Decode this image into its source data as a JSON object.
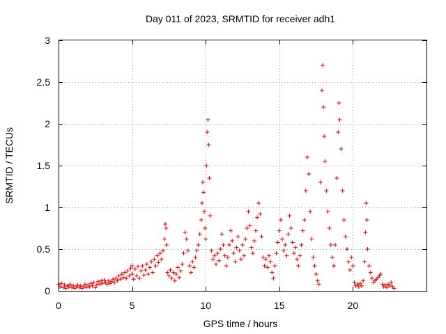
{
  "chart_data": {
    "type": "scatter",
    "title": "Day 011 of 2023, SRMTID for receiver adh1",
    "xlabel": "GPS time / hours",
    "ylabel": "SRMTID / TECUs",
    "xlim": [
      0,
      25
    ],
    "ylim": [
      0,
      3
    ],
    "xticks": [
      0,
      5,
      10,
      15,
      20
    ],
    "xtick_labels": [
      "0",
      "5",
      "10",
      "15",
      "20"
    ],
    "yticks": [
      0,
      0.5,
      1,
      1.5,
      2,
      2.5,
      3
    ],
    "ytick_labels": [
      "0",
      "0.5",
      "1",
      "1.5",
      "2",
      "2.5",
      "3"
    ],
    "grid": true,
    "marker": "+",
    "series_color": "#e00000",
    "series": [
      {
        "name": "SRMTID",
        "points": [
          [
            0.0,
            0.08
          ],
          [
            0.1,
            0.05
          ],
          [
            0.2,
            0.09
          ],
          [
            0.3,
            0.04
          ],
          [
            0.4,
            0.07
          ],
          [
            0.5,
            0.03
          ],
          [
            0.6,
            0.06
          ],
          [
            0.7,
            0.05
          ],
          [
            0.8,
            0.08
          ],
          [
            0.9,
            0.04
          ],
          [
            1.0,
            0.06
          ],
          [
            1.1,
            0.03
          ],
          [
            1.2,
            0.05
          ],
          [
            1.3,
            0.07
          ],
          [
            1.4,
            0.04
          ],
          [
            1.5,
            0.06
          ],
          [
            1.6,
            0.03
          ],
          [
            1.7,
            0.05
          ],
          [
            1.8,
            0.08
          ],
          [
            1.9,
            0.04
          ],
          [
            2.0,
            0.07
          ],
          [
            2.1,
            0.05
          ],
          [
            2.2,
            0.09
          ],
          [
            2.3,
            0.06
          ],
          [
            2.4,
            0.1
          ],
          [
            2.5,
            0.04
          ],
          [
            2.6,
            0.07
          ],
          [
            2.7,
            0.11
          ],
          [
            2.8,
            0.08
          ],
          [
            2.9,
            0.12
          ],
          [
            3.0,
            0.09
          ],
          [
            3.1,
            0.13
          ],
          [
            3.2,
            0.1
          ],
          [
            3.3,
            0.08
          ],
          [
            3.4,
            0.12
          ],
          [
            3.5,
            0.09
          ],
          [
            3.6,
            0.11
          ],
          [
            3.7,
            0.14
          ],
          [
            3.8,
            0.1
          ],
          [
            3.9,
            0.15
          ],
          [
            4.0,
            0.12
          ],
          [
            4.1,
            0.18
          ],
          [
            4.2,
            0.14
          ],
          [
            4.3,
            0.2
          ],
          [
            4.4,
            0.16
          ],
          [
            4.5,
            0.22
          ],
          [
            4.6,
            0.15
          ],
          [
            4.7,
            0.24
          ],
          [
            4.8,
            0.18
          ],
          [
            4.9,
            0.27
          ],
          [
            5.0,
            0.2
          ],
          [
            5.0,
            0.3
          ],
          [
            5.1,
            0.14
          ],
          [
            5.2,
            0.26
          ],
          [
            5.3,
            0.18
          ],
          [
            5.4,
            0.29
          ],
          [
            5.5,
            0.15
          ],
          [
            5.6,
            0.24
          ],
          [
            5.7,
            0.3
          ],
          [
            5.8,
            0.19
          ],
          [
            5.9,
            0.25
          ],
          [
            6.0,
            0.32
          ],
          [
            6.1,
            0.2
          ],
          [
            6.2,
            0.28
          ],
          [
            6.3,
            0.35
          ],
          [
            6.4,
            0.22
          ],
          [
            6.5,
            0.38
          ],
          [
            6.6,
            0.3
          ],
          [
            6.7,
            0.42
          ],
          [
            6.8,
            0.34
          ],
          [
            6.9,
            0.45
          ],
          [
            7.0,
            0.38
          ],
          [
            7.1,
            0.48
          ],
          [
            7.2,
            0.62
          ],
          [
            7.25,
            0.8
          ],
          [
            7.3,
            0.75
          ],
          [
            7.35,
            0.55
          ],
          [
            7.4,
            0.22
          ],
          [
            7.5,
            0.18
          ],
          [
            7.6,
            0.25
          ],
          [
            7.7,
            0.15
          ],
          [
            7.8,
            0.22
          ],
          [
            7.9,
            0.12
          ],
          [
            8.0,
            0.2
          ],
          [
            8.1,
            0.28
          ],
          [
            8.2,
            0.16
          ],
          [
            8.3,
            0.24
          ],
          [
            8.4,
            0.32
          ],
          [
            8.5,
            0.45
          ],
          [
            8.6,
            0.7
          ],
          [
            8.7,
            0.62
          ],
          [
            8.8,
            0.48
          ],
          [
            8.9,
            0.3
          ],
          [
            9.0,
            0.22
          ],
          [
            9.1,
            0.35
          ],
          [
            9.2,
            0.28
          ],
          [
            9.3,
            0.4
          ],
          [
            9.4,
            0.48
          ],
          [
            9.5,
            0.55
          ],
          [
            9.6,
            0.68
          ],
          [
            9.7,
            0.85
          ],
          [
            9.75,
            1.05
          ],
          [
            9.8,
            1.3
          ],
          [
            9.85,
            1.18
          ],
          [
            9.9,
            0.95
          ],
          [
            9.95,
            0.75
          ],
          [
            10.0,
            0.62
          ],
          [
            10.05,
            1.5
          ],
          [
            10.1,
            1.9
          ],
          [
            10.15,
            2.05
          ],
          [
            10.2,
            1.75
          ],
          [
            10.25,
            1.35
          ],
          [
            10.3,
            0.9
          ],
          [
            10.4,
            0.48
          ],
          [
            10.5,
            0.38
          ],
          [
            10.6,
            0.42
          ],
          [
            10.7,
            0.32
          ],
          [
            10.8,
            0.45
          ],
          [
            10.9,
            0.36
          ],
          [
            11.0,
            0.5
          ],
          [
            11.1,
            0.68
          ],
          [
            11.2,
            0.55
          ],
          [
            11.3,
            0.42
          ],
          [
            11.4,
            0.3
          ],
          [
            11.5,
            0.4
          ],
          [
            11.6,
            0.55
          ],
          [
            11.7,
            0.72
          ],
          [
            11.8,
            0.6
          ],
          [
            11.9,
            0.45
          ],
          [
            12.0,
            0.35
          ],
          [
            12.1,
            0.52
          ],
          [
            12.2,
            0.65
          ],
          [
            12.3,
            0.48
          ],
          [
            12.4,
            0.38
          ],
          [
            12.5,
            0.55
          ],
          [
            12.6,
            0.42
          ],
          [
            12.7,
            0.62
          ],
          [
            12.8,
            0.75
          ],
          [
            12.9,
            0.95
          ],
          [
            13.0,
            0.78
          ],
          [
            13.1,
            0.52
          ],
          [
            13.2,
            0.45
          ],
          [
            13.3,
            0.6
          ],
          [
            13.4,
            0.72
          ],
          [
            13.5,
            0.88
          ],
          [
            13.6,
            1.05
          ],
          [
            13.7,
            0.92
          ],
          [
            13.8,
            0.65
          ],
          [
            13.9,
            0.4
          ],
          [
            14.0,
            0.3
          ],
          [
            14.1,
            0.38
          ],
          [
            14.2,
            0.28
          ],
          [
            14.3,
            0.42
          ],
          [
            14.4,
            0.35
          ],
          [
            14.5,
            0.22
          ],
          [
            14.6,
            0.15
          ],
          [
            14.7,
            0.3
          ],
          [
            14.8,
            0.45
          ],
          [
            14.9,
            0.58
          ],
          [
            15.0,
            0.72
          ],
          [
            15.1,
            0.85
          ],
          [
            15.2,
            0.62
          ],
          [
            15.3,
            0.48
          ],
          [
            15.4,
            0.55
          ],
          [
            15.5,
            0.42
          ],
          [
            15.6,
            0.68
          ],
          [
            15.7,
            0.9
          ],
          [
            15.8,
            0.75
          ],
          [
            15.9,
            0.58
          ],
          [
            16.0,
            0.45
          ],
          [
            16.1,
            0.52
          ],
          [
            16.2,
            0.38
          ],
          [
            16.3,
            0.3
          ],
          [
            16.4,
            0.42
          ],
          [
            16.5,
            0.55
          ],
          [
            16.6,
            0.72
          ],
          [
            16.7,
            0.85
          ],
          [
            16.8,
            1.2
          ],
          [
            16.9,
            1.6
          ],
          [
            17.0,
            1.4
          ],
          [
            17.1,
            0.95
          ],
          [
            17.2,
            0.62
          ],
          [
            17.3,
            0.4
          ],
          [
            17.4,
            0.3
          ],
          [
            17.5,
            0.2
          ],
          [
            17.6,
            0.12
          ],
          [
            17.7,
            0.08
          ],
          [
            17.8,
            1.3
          ],
          [
            17.9,
            2.4
          ],
          [
            17.95,
            2.7
          ],
          [
            18.0,
            2.2
          ],
          [
            18.05,
            1.85
          ],
          [
            18.1,
            1.55
          ],
          [
            18.2,
            1.2
          ],
          [
            18.3,
            0.95
          ],
          [
            18.4,
            0.75
          ],
          [
            18.5,
            0.55
          ],
          [
            18.6,
            0.4
          ],
          [
            18.7,
            0.3
          ],
          [
            18.8,
            0.55
          ],
          [
            18.9,
            1.35
          ],
          [
            19.0,
            1.9
          ],
          [
            19.05,
            2.25
          ],
          [
            19.1,
            2.05
          ],
          [
            19.2,
            1.7
          ],
          [
            19.3,
            1.2
          ],
          [
            19.4,
            0.85
          ],
          [
            19.5,
            0.65
          ],
          [
            19.6,
            0.5
          ],
          [
            19.7,
            0.35
          ],
          [
            19.8,
            0.25
          ],
          [
            19.9,
            0.4
          ],
          [
            20.0,
            0.3
          ],
          [
            20.1,
            0.1
          ],
          [
            20.2,
            0.06
          ],
          [
            20.3,
            0.08
          ],
          [
            20.4,
            0.05
          ],
          [
            20.5,
            0.09
          ],
          [
            20.6,
            0.06
          ],
          [
            20.7,
            0.12
          ],
          [
            20.8,
            0.35
          ],
          [
            20.85,
            0.7
          ],
          [
            20.9,
            1.05
          ],
          [
            20.95,
            0.85
          ],
          [
            21.0,
            0.5
          ],
          [
            21.1,
            0.3
          ],
          [
            21.2,
            0.22
          ],
          [
            21.3,
            0.15
          ],
          [
            21.4,
            0.1
          ],
          [
            21.5,
            0.12
          ],
          [
            21.6,
            0.14
          ],
          [
            21.7,
            0.16
          ],
          [
            21.8,
            0.18
          ],
          [
            21.9,
            0.2
          ],
          [
            22.0,
            0.08
          ],
          [
            22.1,
            0.05
          ],
          [
            22.2,
            0.07
          ],
          [
            22.3,
            0.04
          ],
          [
            22.4,
            0.08
          ],
          [
            22.5,
            0.06
          ],
          [
            22.6,
            0.1
          ],
          [
            22.7,
            0.05
          ],
          [
            22.8,
            0.03
          ]
        ]
      }
    ]
  }
}
